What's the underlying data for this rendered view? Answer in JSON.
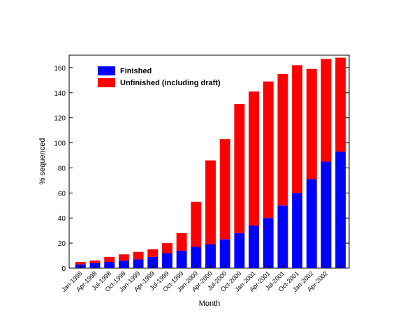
{
  "chart_data": {
    "type": "stacked-bar",
    "categories": [
      "Jan-1998",
      "Apr-1998",
      "Jul-1998",
      "Oct-1998",
      "Jan-1999",
      "Apr-1999",
      "Jul-1999",
      "Oct-1999",
      "Jan-2000",
      "Apr-2000",
      "Jul-2000",
      "Oct-2000",
      "Jan-2001",
      "Apr-2001",
      "Jul-2001",
      "Oct-2001",
      "Jan-2002",
      "Apr-2002",
      null
    ],
    "series": [
      {
        "name": "Finished",
        "color": "#0000ff",
        "values": [
          3,
          4,
          5,
          6,
          7,
          9,
          12,
          14,
          17,
          19,
          23,
          28,
          34,
          40,
          50,
          60,
          71,
          85,
          93
        ]
      },
      {
        "name": "Unfinished (including draft)",
        "color": "#ff0000",
        "values": [
          2,
          2,
          4,
          5,
          6,
          6,
          8,
          14,
          36,
          67,
          80,
          103,
          107,
          109,
          105,
          102,
          88,
          82,
          75
        ]
      }
    ],
    "x_label": "Month",
    "y_label": "% sequenced",
    "ylim": [
      0,
      170
    ],
    "yticks": [
      0,
      20,
      40,
      60,
      80,
      100,
      120,
      140,
      160
    ],
    "legend": "upper-left"
  }
}
